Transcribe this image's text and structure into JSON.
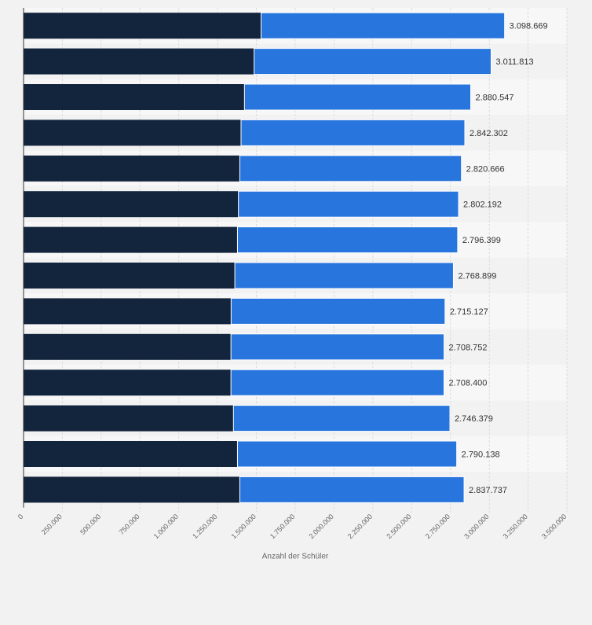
{
  "chart_data": {
    "type": "bar",
    "orientation": "horizontal",
    "stacked": true,
    "xlabel": "Anzahl der Schüler",
    "xlim": [
      0,
      3500000
    ],
    "x_ticks": [
      0,
      250000,
      500000,
      750000,
      1000000,
      1250000,
      1500000,
      1750000,
      2000000,
      2250000,
      2500000,
      2750000,
      3000000,
      3250000,
      3500000
    ],
    "x_tick_labels": [
      "0",
      "250.000",
      "500.000",
      "750.000",
      "1.000.000",
      "1.250.000",
      "1.500.000",
      "1.750.000",
      "2.000.000",
      "2.250.000",
      "2.500.000",
      "2.750.000",
      "3.000.000",
      "3.250.000",
      "3.500.000"
    ],
    "grid": true,
    "colors": {
      "series1": "#13253d",
      "series2": "#2876dd"
    },
    "series": [
      {
        "values": [
          1530000,
          1485000,
          1423000,
          1401000,
          1393000,
          1384000,
          1378000,
          1361000,
          1337000,
          1336000,
          1336000,
          1352000,
          1378000,
          1393000
        ]
      },
      {
        "values": [
          1568669,
          1526813,
          1457547,
          1441302,
          1427666,
          1418192,
          1418399,
          1407899,
          1378127,
          1372752,
          1372400,
          1394379,
          1412138,
          1444737
        ]
      }
    ],
    "totals": [
      3098669,
      3011813,
      2880547,
      2842302,
      2820666,
      2802192,
      2796399,
      2768899,
      2715127,
      2708752,
      2708400,
      2746379,
      2790138,
      2837737
    ],
    "total_labels": [
      "3.098.669",
      "3.011.813",
      "2.880.547",
      "2.842.302",
      "2.820.666",
      "2.802.192",
      "2.796.399",
      "2.768.899",
      "2.715.127",
      "2.708.752",
      "2.708.400",
      "2.746.379",
      "2.790.138",
      "2.837.737"
    ]
  }
}
